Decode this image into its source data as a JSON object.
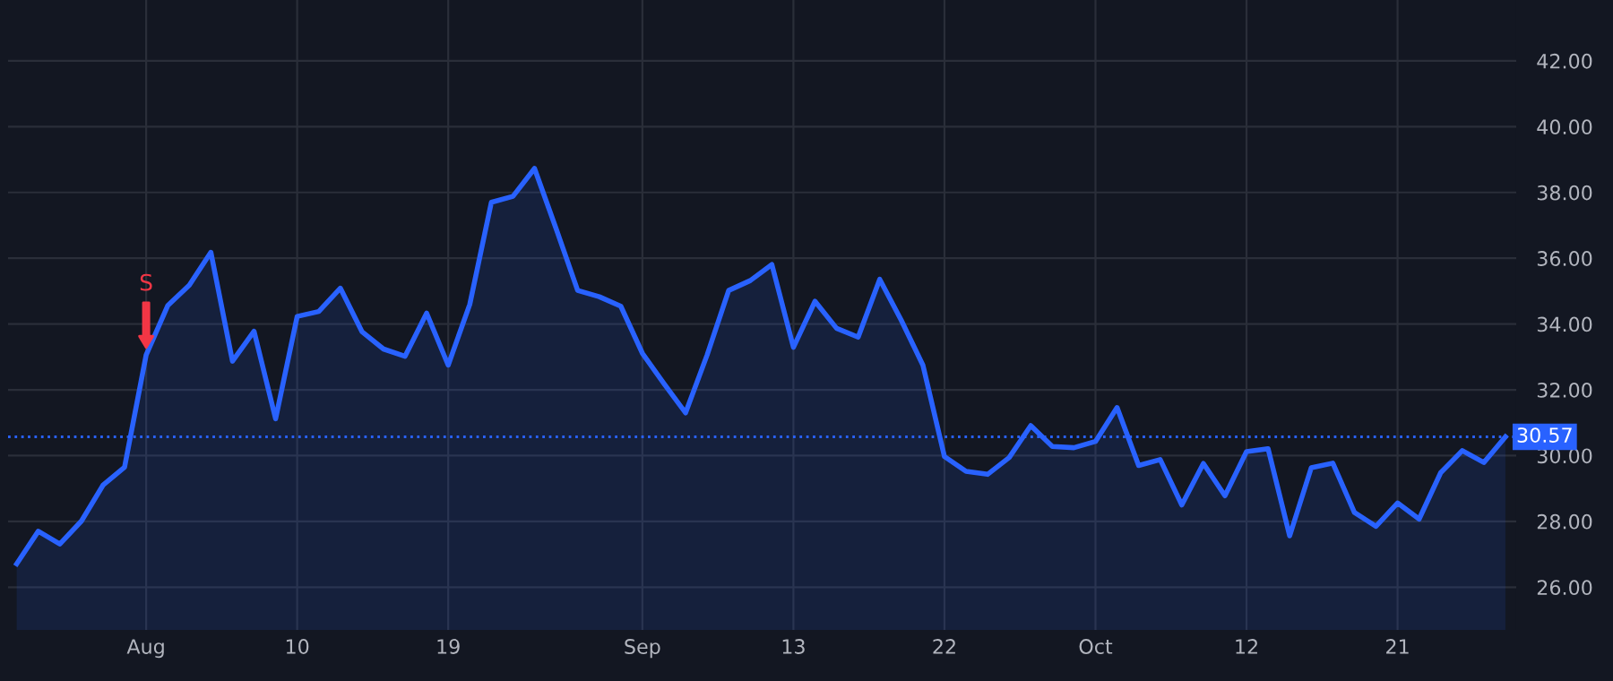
{
  "chart_data": {
    "type": "area",
    "categories": [
      null,
      null,
      null,
      null,
      null,
      null,
      "Aug",
      null,
      null,
      null,
      null,
      null,
      null,
      "10",
      null,
      null,
      null,
      null,
      null,
      null,
      "19",
      null,
      null,
      null,
      null,
      null,
      null,
      null,
      null,
      "Sep",
      null,
      null,
      null,
      null,
      null,
      null,
      "13",
      null,
      null,
      null,
      null,
      null,
      null,
      "22",
      null,
      null,
      null,
      null,
      null,
      null,
      "Oct",
      null,
      null,
      null,
      null,
      null,
      null,
      "12",
      null,
      null,
      null,
      null,
      null,
      null,
      "21",
      null,
      null,
      null,
      null,
      null
    ],
    "series": [
      {
        "color": "#2962ff",
        "values": [
          26.71,
          27.7,
          27.31,
          28.01,
          29.1,
          29.65,
          33.06,
          34.56,
          35.18,
          36.18,
          32.87,
          33.78,
          31.12,
          34.23,
          34.38,
          35.09,
          33.77,
          33.24,
          33.02,
          34.33,
          32.75,
          34.6,
          37.7,
          37.88,
          38.73,
          36.9,
          35.02,
          34.83,
          34.54,
          33.11,
          32.19,
          31.3,
          33.06,
          35.02,
          35.32,
          35.81,
          33.29,
          34.69,
          33.87,
          33.6,
          35.36,
          34.11,
          32.75,
          29.97,
          29.52,
          29.43,
          29.94,
          30.91,
          30.28,
          30.24,
          30.43,
          31.46,
          29.7,
          29.88,
          28.5,
          29.76,
          28.78,
          30.12,
          30.21,
          27.56,
          29.63,
          29.77,
          28.27,
          27.85,
          28.56,
          28.07,
          29.48,
          30.15,
          29.79,
          30.57
        ]
      }
    ],
    "ylim": [
      24.7,
      43.85
    ],
    "yticks": [
      {
        "value": 26,
        "label": "26.00"
      },
      {
        "value": 28,
        "label": "28.00"
      },
      {
        "value": 30,
        "label": "30.00"
      },
      {
        "value": 32,
        "label": "32.00"
      },
      {
        "value": 34,
        "label": "34.00"
      },
      {
        "value": 36,
        "label": "36.00"
      },
      {
        "value": 38,
        "label": "38.00"
      },
      {
        "value": 40,
        "label": "40.00"
      },
      {
        "value": 42,
        "label": "42.00"
      }
    ],
    "ref_lines": [
      {
        "axis": "y",
        "value": 30.57,
        "label": "30.57",
        "color": "#2962ff",
        "line_style": "dotted"
      }
    ],
    "annotations": [
      {
        "text": "S",
        "x": "Aug",
        "y": 33.06
      }
    ],
    "grid": true,
    "legend": false,
    "line_style": "solid"
  }
}
